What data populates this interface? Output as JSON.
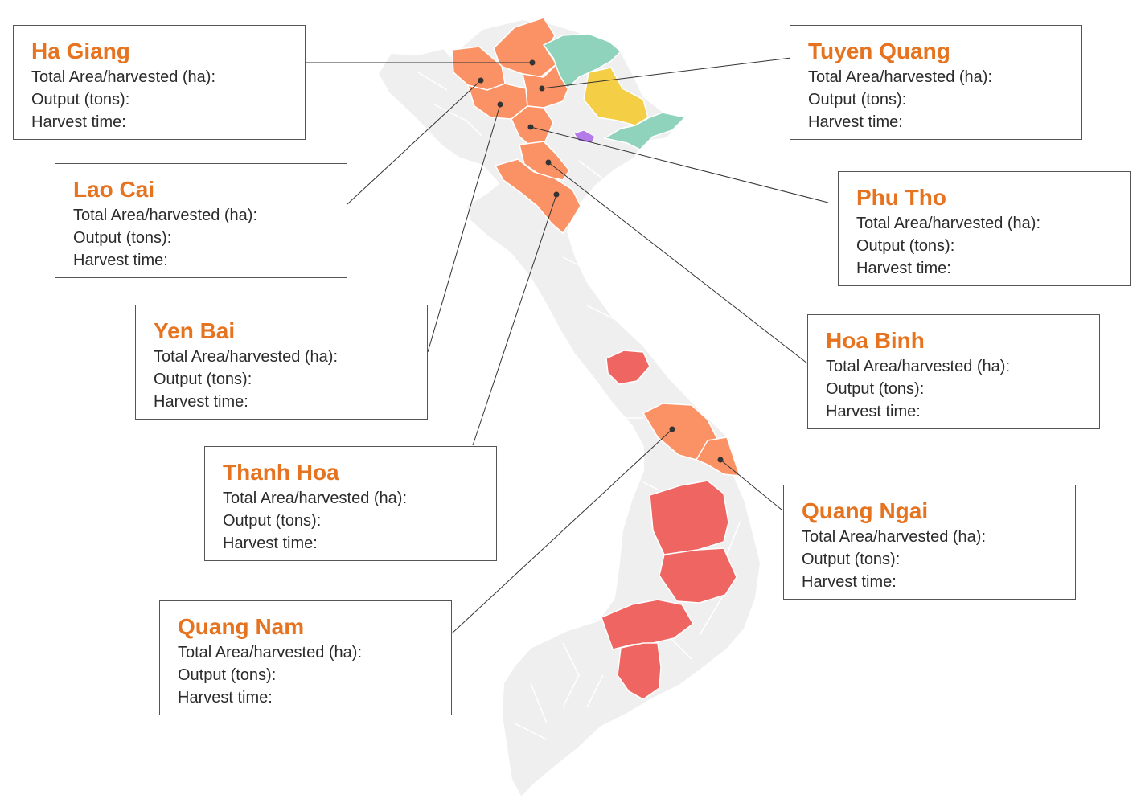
{
  "colors": {
    "title": "#e5731f",
    "land": "#efefef",
    "orange_region": "#fb9265",
    "red_region": "#ee6561",
    "teal_region": "#8fd3bd",
    "yellow_region": "#f4ce45",
    "purple_region": "#b37ae8",
    "leader_line": "#333333"
  },
  "field_labels": {
    "area": "Total Area/harvested (ha):",
    "output": "Output (tons):",
    "harvest": "Harvest time:"
  },
  "provinces": [
    {
      "name": "Ha Giang"
    },
    {
      "name": "Lao Cai"
    },
    {
      "name": "Yen Bai"
    },
    {
      "name": "Thanh Hoa"
    },
    {
      "name": "Quang Nam"
    },
    {
      "name": "Tuyen Quang"
    },
    {
      "name": "Phu Tho"
    },
    {
      "name": "Hoa Binh"
    },
    {
      "name": "Quang Ngai"
    }
  ]
}
